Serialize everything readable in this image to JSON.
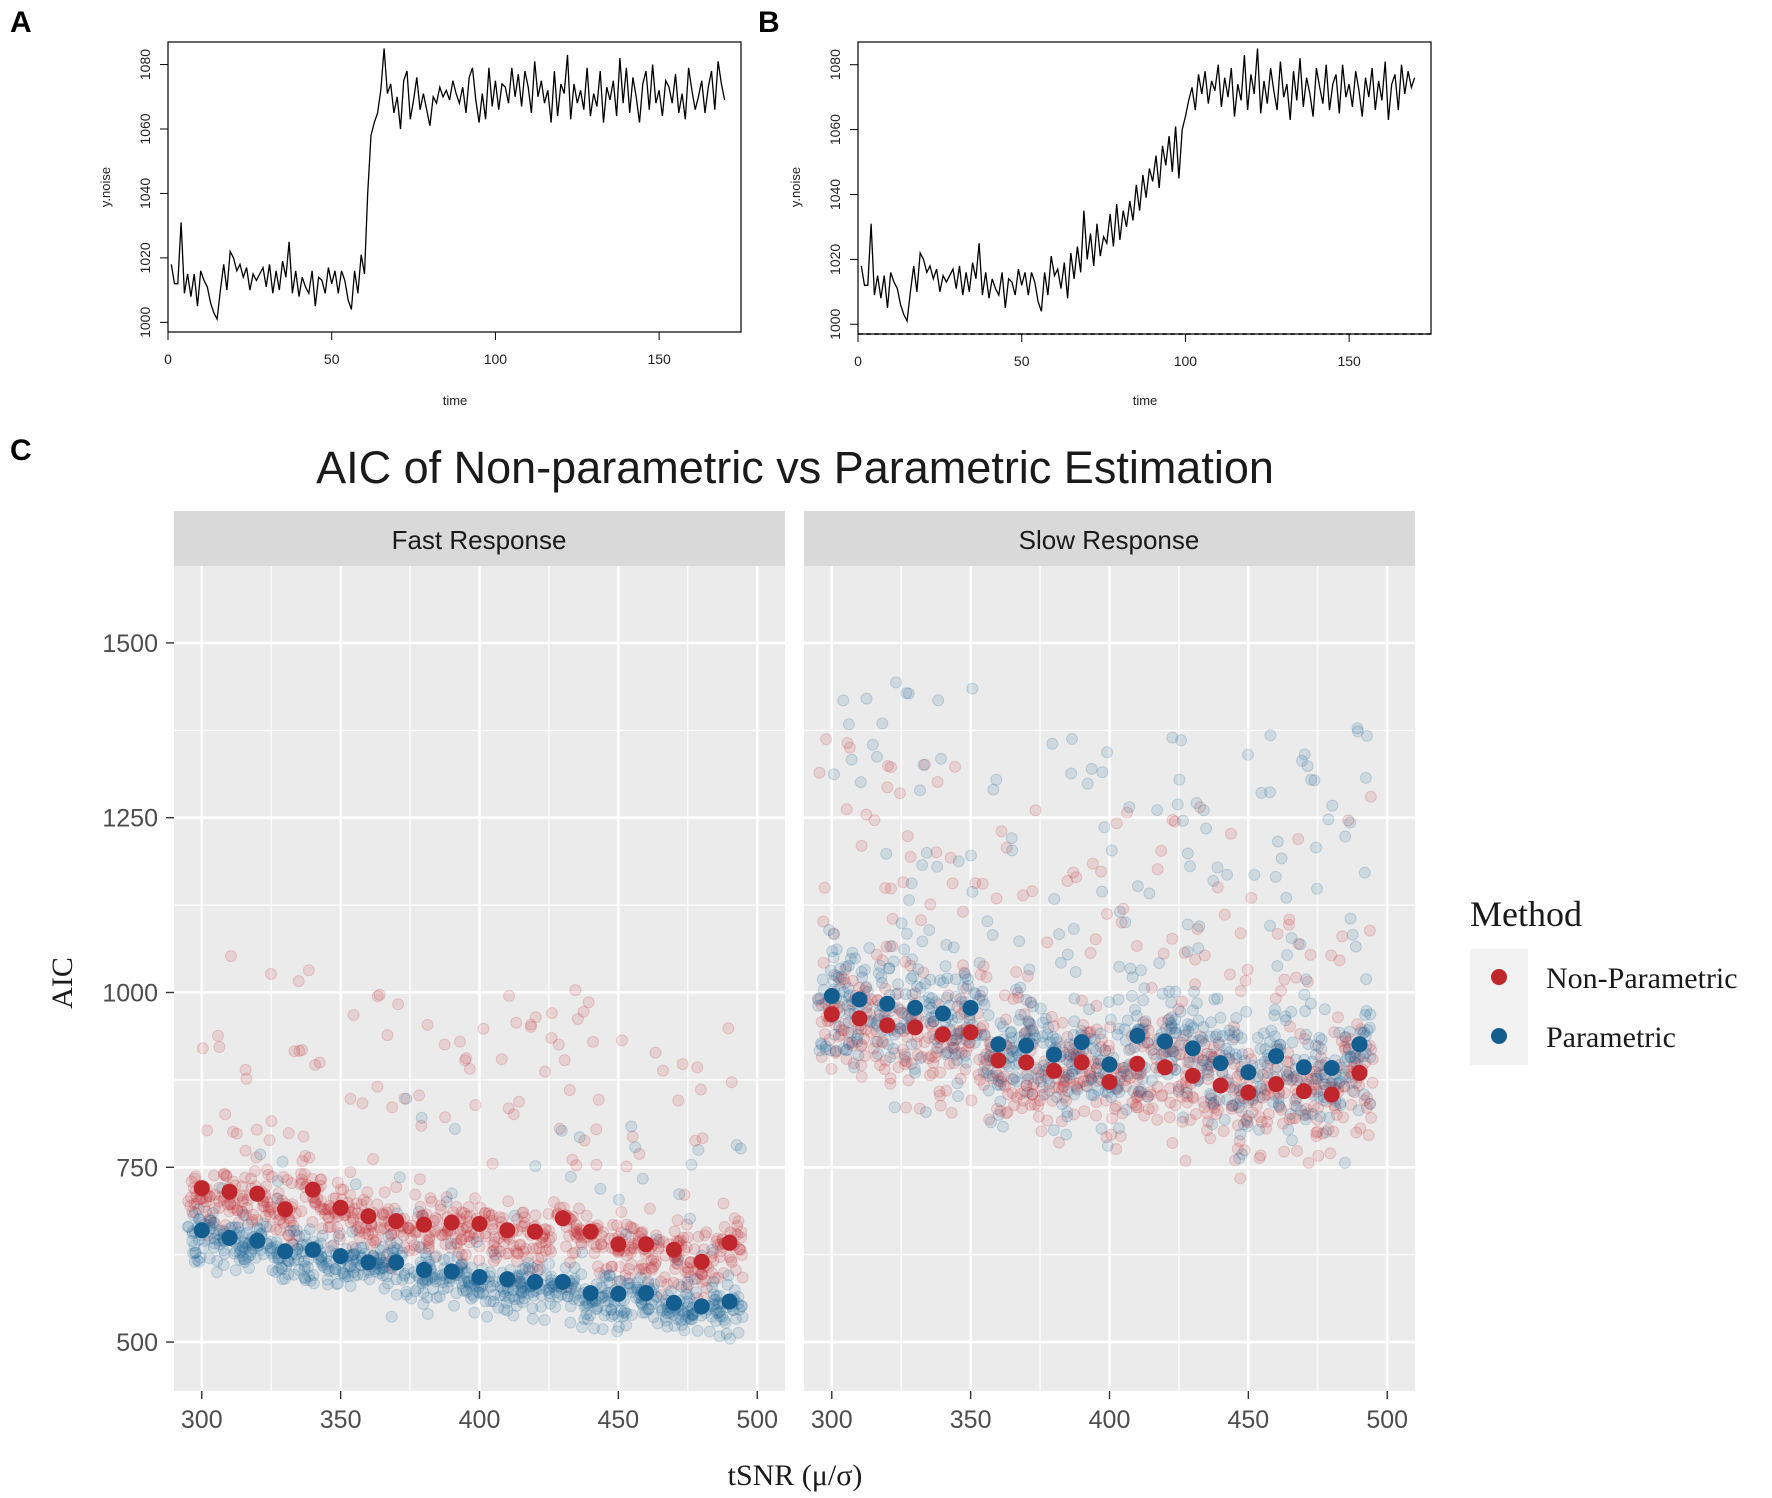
{
  "panels": {
    "a_label": "A",
    "b_label": "B",
    "c_label": "C"
  },
  "chart_data": [
    {
      "type": "line",
      "panel": "A",
      "title": "",
      "xlabel": "time",
      "ylabel": "y.noise",
      "xlim": [
        0,
        175
      ],
      "ylim": [
        997,
        1087
      ],
      "xticks": [
        0,
        50,
        100,
        150
      ],
      "yticks": [
        1000,
        1020,
        1040,
        1060,
        1080
      ],
      "x": [
        1,
        2,
        3,
        4,
        5,
        6,
        7,
        8,
        9,
        10,
        11,
        12,
        13,
        14,
        15,
        16,
        17,
        18,
        19,
        20,
        21,
        22,
        23,
        24,
        25,
        26,
        27,
        28,
        29,
        30,
        31,
        32,
        33,
        34,
        35,
        36,
        37,
        38,
        39,
        40,
        41,
        42,
        43,
        44,
        45,
        46,
        47,
        48,
        49,
        50,
        51,
        52,
        53,
        54,
        55,
        56,
        57,
        58,
        59,
        60,
        61,
        62,
        63,
        64,
        65,
        66,
        67,
        68,
        69,
        70,
        71,
        72,
        73,
        74,
        75,
        76,
        77,
        78,
        79,
        80,
        81,
        82,
        83,
        84,
        85,
        86,
        87,
        88,
        89,
        90,
        91,
        92,
        93,
        94,
        95,
        96,
        97,
        98,
        99,
        100,
        101,
        102,
        103,
        104,
        105,
        106,
        107,
        108,
        109,
        110,
        111,
        112,
        113,
        114,
        115,
        116,
        117,
        118,
        119,
        120,
        121,
        122,
        123,
        124,
        125,
        126,
        127,
        128,
        129,
        130,
        131,
        132,
        133,
        134,
        135,
        136,
        137,
        138,
        139,
        140,
        141,
        142,
        143,
        144,
        145,
        146,
        147,
        148,
        149,
        150,
        151,
        152,
        153,
        154,
        155,
        156,
        157,
        158,
        159,
        160,
        161,
        162,
        163,
        164,
        165,
        166,
        167,
        168,
        169,
        170
      ],
      "y": [
        1018,
        1012,
        1012,
        1031,
        1009,
        1015,
        1008,
        1015,
        1005,
        1016,
        1013,
        1011,
        1006,
        1003,
        1001,
        1010,
        1018,
        1010,
        1022,
        1020,
        1016,
        1018,
        1014,
        1017,
        1010,
        1015,
        1013,
        1015,
        1017,
        1011,
        1018,
        1009,
        1016,
        1010,
        1019,
        1014,
        1025,
        1009,
        1016,
        1008,
        1014,
        1011,
        1009,
        1016,
        1005,
        1014,
        1013,
        1009,
        1017,
        1012,
        1016,
        1009,
        1016,
        1013,
        1007,
        1004,
        1016,
        1009,
        1021,
        1015,
        1040,
        1058,
        1062,
        1065,
        1072,
        1085,
        1071,
        1074,
        1065,
        1070,
        1060,
        1075,
        1078,
        1063,
        1069,
        1076,
        1066,
        1071,
        1066,
        1061,
        1070,
        1068,
        1073,
        1070,
        1072,
        1069,
        1075,
        1071,
        1068,
        1073,
        1065,
        1076,
        1079,
        1069,
        1062,
        1071,
        1063,
        1079,
        1067,
        1075,
        1066,
        1074,
        1073,
        1068,
        1079,
        1070,
        1077,
        1067,
        1078,
        1073,
        1065,
        1081,
        1070,
        1075,
        1068,
        1072,
        1062,
        1078,
        1064,
        1074,
        1071,
        1083,
        1063,
        1074,
        1068,
        1072,
        1066,
        1079,
        1064,
        1071,
        1067,
        1078,
        1062,
        1073,
        1069,
        1075,
        1064,
        1082,
        1068,
        1079,
        1065,
        1076,
        1070,
        1062,
        1074,
        1078,
        1066,
        1080,
        1068,
        1072,
        1064,
        1075,
        1073,
        1068,
        1077,
        1065,
        1071,
        1063,
        1079,
        1072,
        1066,
        1070,
        1075,
        1065,
        1073,
        1078,
        1066,
        1081,
        1074,
        1069
      ]
    },
    {
      "type": "line",
      "panel": "B",
      "title": "",
      "xlabel": "time",
      "ylabel": "y.noise",
      "xlim": [
        0,
        175
      ],
      "ylim": [
        997,
        1087
      ],
      "xticks": [
        0,
        50,
        100,
        150
      ],
      "yticks": [
        1000,
        1020,
        1040,
        1060,
        1080
      ],
      "x": [
        1,
        2,
        3,
        4,
        5,
        6,
        7,
        8,
        9,
        10,
        11,
        12,
        13,
        14,
        15,
        16,
        17,
        18,
        19,
        20,
        21,
        22,
        23,
        24,
        25,
        26,
        27,
        28,
        29,
        30,
        31,
        32,
        33,
        34,
        35,
        36,
        37,
        38,
        39,
        40,
        41,
        42,
        43,
        44,
        45,
        46,
        47,
        48,
        49,
        50,
        51,
        52,
        53,
        54,
        55,
        56,
        57,
        58,
        59,
        60,
        61,
        62,
        63,
        64,
        65,
        66,
        67,
        68,
        69,
        70,
        71,
        72,
        73,
        74,
        75,
        76,
        77,
        78,
        79,
        80,
        81,
        82,
        83,
        84,
        85,
        86,
        87,
        88,
        89,
        90,
        91,
        92,
        93,
        94,
        95,
        96,
        97,
        98,
        99,
        100,
        101,
        102,
        103,
        104,
        105,
        106,
        107,
        108,
        109,
        110,
        111,
        112,
        113,
        114,
        115,
        116,
        117,
        118,
        119,
        120,
        121,
        122,
        123,
        124,
        125,
        126,
        127,
        128,
        129,
        130,
        131,
        132,
        133,
        134,
        135,
        136,
        137,
        138,
        139,
        140,
        141,
        142,
        143,
        144,
        145,
        146,
        147,
        148,
        149,
        150,
        151,
        152,
        153,
        154,
        155,
        156,
        157,
        158,
        159,
        160,
        161,
        162,
        163,
        164,
        165,
        166,
        167,
        168,
        169,
        170
      ],
      "y": [
        1018,
        1012,
        1012,
        1031,
        1009,
        1015,
        1008,
        1015,
        1005,
        1016,
        1013,
        1011,
        1006,
        1003,
        1001,
        1010,
        1018,
        1010,
        1022,
        1020,
        1016,
        1018,
        1014,
        1017,
        1010,
        1015,
        1013,
        1015,
        1017,
        1011,
        1018,
        1009,
        1016,
        1010,
        1019,
        1014,
        1025,
        1009,
        1016,
        1008,
        1014,
        1011,
        1009,
        1016,
        1005,
        1014,
        1013,
        1009,
        1017,
        1012,
        1016,
        1009,
        1016,
        1013,
        1007,
        1004,
        1016,
        1009,
        1021,
        1015,
        1017,
        1011,
        1019,
        1008,
        1022,
        1014,
        1024,
        1016,
        1035,
        1020,
        1028,
        1018,
        1031,
        1021,
        1027,
        1025,
        1034,
        1024,
        1037,
        1026,
        1035,
        1030,
        1038,
        1032,
        1043,
        1035,
        1046,
        1039,
        1048,
        1044,
        1052,
        1042,
        1055,
        1049,
        1058,
        1047,
        1061,
        1045,
        1060,
        1064,
        1069,
        1073,
        1066,
        1077,
        1071,
        1078,
        1068,
        1075,
        1072,
        1080,
        1067,
        1076,
        1070,
        1079,
        1064,
        1074,
        1069,
        1083,
        1066,
        1077,
        1071,
        1085,
        1065,
        1075,
        1068,
        1079,
        1072,
        1066,
        1081,
        1070,
        1074,
        1063,
        1078,
        1069,
        1082,
        1067,
        1076,
        1071,
        1064,
        1079,
        1073,
        1068,
        1080,
        1066,
        1074,
        1077,
        1065,
        1080,
        1070,
        1074,
        1067,
        1078,
        1072,
        1064,
        1076,
        1070,
        1079,
        1066,
        1075,
        1069,
        1081,
        1063,
        1074,
        1077,
        1066,
        1080,
        1071,
        1078,
        1073,
        1076
      ]
    },
    {
      "type": "scatter",
      "panel": "C",
      "title": "AIC of Non-parametric vs Parametric Estimation",
      "xlabel": "tSNR (μ/σ)",
      "ylabel": "AIC",
      "xlim": [
        290,
        510
      ],
      "ylim": [
        430,
        1610
      ],
      "xticks": [
        300,
        350,
        400,
        450,
        500
      ],
      "yticks": [
        500,
        750,
        1000,
        1250,
        1500
      ],
      "legend": {
        "title": "Method",
        "position": "right"
      },
      "facets": [
        {
          "label": "Fast Response",
          "series": [
            {
              "name": "Non-Parametric",
              "color": "#c0272d",
              "x": [
                300,
                310,
                320,
                330,
                340,
                350,
                360,
                370,
                380,
                390,
                400,
                410,
                420,
                430,
                440,
                450,
                460,
                470,
                480,
                490
              ],
              "mean": [
                720,
                715,
                712,
                690,
                718,
                692,
                680,
                673,
                668,
                671,
                669,
                660,
                658,
                677,
                658,
                640,
                640,
                632,
                615,
                642
              ]
            },
            {
              "name": "Parametric",
              "color": "#135d8f",
              "x": [
                300,
                310,
                320,
                330,
                340,
                350,
                360,
                370,
                380,
                390,
                400,
                410,
                420,
                430,
                440,
                450,
                460,
                470,
                480,
                490
              ],
              "mean": [
                660,
                649,
                645,
                630,
                632,
                623,
                614,
                614,
                603,
                601,
                593,
                590,
                586,
                586,
                570,
                569,
                570,
                556,
                551,
                558
              ]
            }
          ]
        },
        {
          "label": "Slow Response",
          "series": [
            {
              "name": "Non-Parametric",
              "color": "#c0272d",
              "x": [
                300,
                310,
                320,
                330,
                340,
                350,
                360,
                370,
                380,
                390,
                400,
                410,
                420,
                430,
                440,
                450,
                460,
                470,
                480,
                490
              ],
              "mean": [
                969,
                963,
                953,
                950,
                940,
                943,
                903,
                900,
                888,
                900,
                872,
                898,
                893,
                881,
                867,
                857,
                869,
                859,
                854,
                885
              ]
            },
            {
              "name": "Parametric",
              "color": "#135d8f",
              "x": [
                300,
                310,
                320,
                330,
                340,
                350,
                360,
                370,
                380,
                390,
                400,
                410,
                420,
                430,
                440,
                450,
                460,
                470,
                480,
                490
              ],
              "mean": [
                995,
                990,
                984,
                978,
                970,
                978,
                926,
                924,
                911,
                929,
                897,
                938,
                930,
                920,
                899,
                886,
                909,
                893,
                892,
                926
              ]
            }
          ]
        }
      ]
    }
  ]
}
